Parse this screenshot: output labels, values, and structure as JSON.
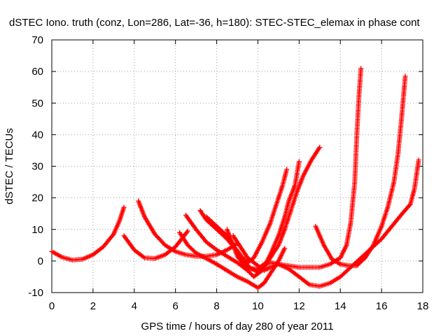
{
  "chart_data": {
    "type": "scatter",
    "title": "dSTEC Iono. truth (conz, Lon=286, Lat=-36, h=180): STEC-STEC_elemax in phase cont",
    "xlabel": "GPS time / hours of day 280 of year 2011",
    "ylabel": "dSTEC  / TECUs",
    "xlim": [
      0,
      18
    ],
    "ylim": [
      -10,
      70
    ],
    "x_ticks": [
      "0",
      "2",
      "4",
      "6",
      "8",
      "10",
      "12",
      "14",
      "16",
      "18"
    ],
    "y_ticks": [
      "-10",
      "0",
      "10",
      "20",
      "30",
      "40",
      "50",
      "60",
      "70"
    ],
    "grid": true,
    "marker": "+",
    "color": "#ff0000",
    "series": [
      {
        "points": [
          [
            0,
            3
          ],
          [
            0.5,
            1.2
          ],
          [
            1,
            0.3
          ],
          [
            1.5,
            0.6
          ],
          [
            2,
            2
          ],
          [
            2.5,
            4.5
          ],
          [
            3,
            8.5
          ],
          [
            3.3,
            13
          ],
          [
            3.5,
            17
          ]
        ]
      },
      {
        "points": [
          [
            3.5,
            8
          ],
          [
            4,
            3.5
          ],
          [
            4.5,
            1
          ],
          [
            5,
            0.8
          ],
          [
            5.5,
            2
          ],
          [
            6,
            4.5
          ],
          [
            6.3,
            7
          ],
          [
            6.6,
            9.5
          ]
        ]
      },
      {
        "points": [
          [
            4.2,
            19
          ],
          [
            4.5,
            14
          ],
          [
            5,
            8.5
          ],
          [
            5.5,
            5
          ],
          [
            6,
            3
          ],
          [
            6.5,
            2
          ],
          [
            7,
            1.5
          ],
          [
            7.5,
            1.5
          ],
          [
            8,
            2
          ],
          [
            8.5,
            3.5
          ],
          [
            9,
            5.5
          ]
        ]
      },
      {
        "points": [
          [
            6.2,
            9
          ],
          [
            6.6,
            5
          ],
          [
            7,
            2.5
          ],
          [
            7.5,
            0.8
          ],
          [
            8,
            -1
          ],
          [
            8.5,
            -3
          ],
          [
            9,
            -5
          ],
          [
            9.5,
            -6.5
          ],
          [
            10,
            -8.5
          ],
          [
            10.3,
            -7
          ],
          [
            10.6,
            -4
          ],
          [
            11,
            0
          ],
          [
            11.3,
            4
          ]
        ]
      },
      {
        "points": [
          [
            6.5,
            14.5
          ],
          [
            7,
            10
          ],
          [
            7.5,
            6
          ],
          [
            8,
            3.5
          ],
          [
            8.5,
            1.5
          ],
          [
            9,
            -0.5
          ],
          [
            9.5,
            -3
          ],
          [
            9.8,
            -5
          ],
          [
            10.2,
            -3
          ],
          [
            10.6,
            2
          ],
          [
            11,
            8
          ],
          [
            11.3,
            14
          ],
          [
            11.5,
            19
          ],
          [
            11.8,
            24
          ],
          [
            12,
            31.5
          ]
        ]
      },
      {
        "points": [
          [
            7.2,
            16
          ],
          [
            7.5,
            13
          ],
          [
            8,
            10
          ],
          [
            8.5,
            7
          ],
          [
            9,
            3
          ],
          [
            9.3,
            0
          ],
          [
            9.6,
            -2
          ],
          [
            10,
            -3.5
          ],
          [
            10.3,
            -2
          ],
          [
            10.6,
            1
          ],
          [
            11,
            5
          ],
          [
            11.3,
            10
          ],
          [
            11.6,
            16
          ],
          [
            11.9,
            22
          ],
          [
            12.2,
            27
          ],
          [
            12.6,
            32
          ],
          [
            13,
            36
          ]
        ]
      },
      {
        "points": [
          [
            7.5,
            14
          ],
          [
            8,
            11
          ],
          [
            8.5,
            8
          ],
          [
            8.8,
            5
          ],
          [
            9.2,
            1.5
          ],
          [
            9.5,
            -0.5
          ],
          [
            9.8,
            1
          ],
          [
            10.2,
            6
          ],
          [
            10.6,
            12
          ],
          [
            10.9,
            18
          ],
          [
            11.2,
            24
          ],
          [
            11.4,
            29
          ]
        ]
      },
      {
        "points": [
          [
            8.5,
            10
          ],
          [
            8.8,
            5
          ],
          [
            9,
            1.5
          ],
          [
            9.3,
            -1
          ],
          [
            9.6,
            -2.5
          ],
          [
            10,
            -2.5
          ],
          [
            10.3,
            -1
          ],
          [
            10.6,
            -0.5
          ],
          [
            11,
            -1
          ],
          [
            11.5,
            -1.5
          ],
          [
            12,
            -2
          ],
          [
            12.5,
            -2
          ],
          [
            13,
            -2
          ],
          [
            13.5,
            -1
          ],
          [
            14,
            1
          ],
          [
            14.3,
            5
          ],
          [
            14.5,
            12
          ],
          [
            14.7,
            25
          ],
          [
            14.8,
            40
          ],
          [
            14.9,
            52
          ],
          [
            15,
            61
          ]
        ]
      },
      {
        "points": [
          [
            8.8,
            8
          ],
          [
            9.2,
            4
          ],
          [
            9.5,
            1
          ],
          [
            10,
            -1.5
          ],
          [
            10.3,
            -3
          ],
          [
            10.6,
            -2
          ],
          [
            11,
            -1
          ],
          [
            11.5,
            -2.5
          ],
          [
            12,
            -5
          ],
          [
            12.5,
            -7.5
          ],
          [
            13,
            -8
          ],
          [
            13.5,
            -7
          ],
          [
            14,
            -5
          ],
          [
            14.5,
            -2
          ],
          [
            15,
            1
          ],
          [
            15.5,
            4
          ],
          [
            16,
            7
          ],
          [
            16.5,
            11
          ],
          [
            17,
            15
          ],
          [
            17.4,
            18
          ],
          [
            17.6,
            23
          ],
          [
            17.8,
            32
          ]
        ]
      },
      {
        "points": [
          [
            12.8,
            11
          ],
          [
            13.2,
            5
          ],
          [
            13.6,
            0.5
          ],
          [
            14,
            -1
          ],
          [
            14.4,
            -1.5
          ],
          [
            14.8,
            -1.5
          ],
          [
            15.2,
            1
          ],
          [
            15.6,
            5
          ],
          [
            16,
            11
          ],
          [
            16.3,
            17
          ],
          [
            16.6,
            25
          ],
          [
            16.8,
            34
          ],
          [
            16.95,
            44
          ],
          [
            17.05,
            51
          ],
          [
            17.15,
            58.5
          ]
        ]
      }
    ]
  }
}
